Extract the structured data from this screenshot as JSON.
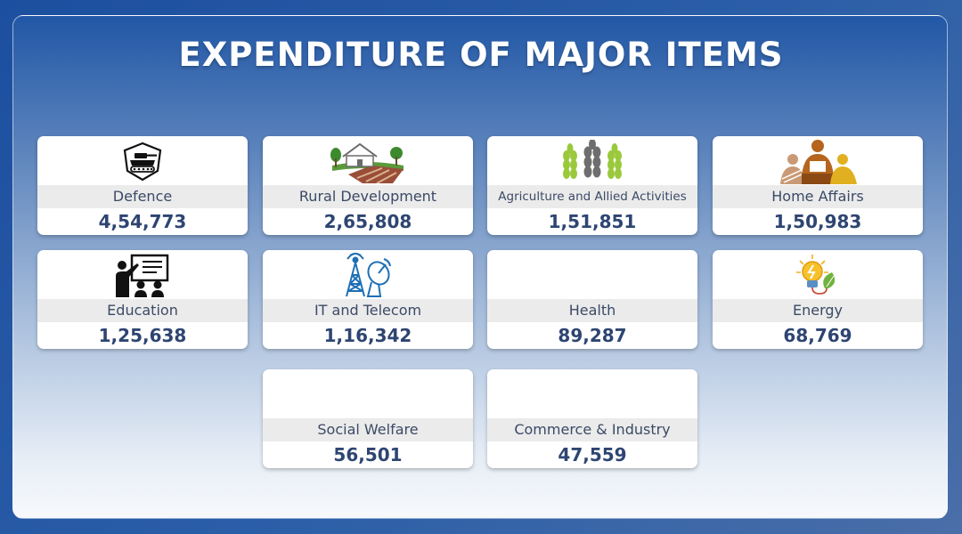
{
  "title": "EXPENDITURE OF MAJOR ITEMS",
  "items": [
    {
      "label": "Defence",
      "value": "4,54,773",
      "icon": "tank-shield-icon"
    },
    {
      "label": "Rural Development",
      "value": "2,65,808",
      "icon": "farmhouse-field-icon"
    },
    {
      "label": "Agriculture and Allied Activities",
      "value": "1,51,851",
      "icon": "wheat-icon"
    },
    {
      "label": "Home Affairs",
      "value": "1,50,983",
      "icon": "people-meeting-icon"
    },
    {
      "label": "Education",
      "value": "1,25,638",
      "icon": "teacher-board-icon"
    },
    {
      "label": "IT and Telecom",
      "value": "1,16,342",
      "icon": "tower-dish-icon"
    },
    {
      "label": "Health",
      "value": "89,287",
      "icon": ""
    },
    {
      "label": "Energy",
      "value": "68,769",
      "icon": "bulb-leaf-icon"
    },
    {
      "label": "Social Welfare",
      "value": "56,501",
      "icon": ""
    },
    {
      "label": "Commerce & Industry",
      "value": "47,559",
      "icon": ""
    }
  ]
}
